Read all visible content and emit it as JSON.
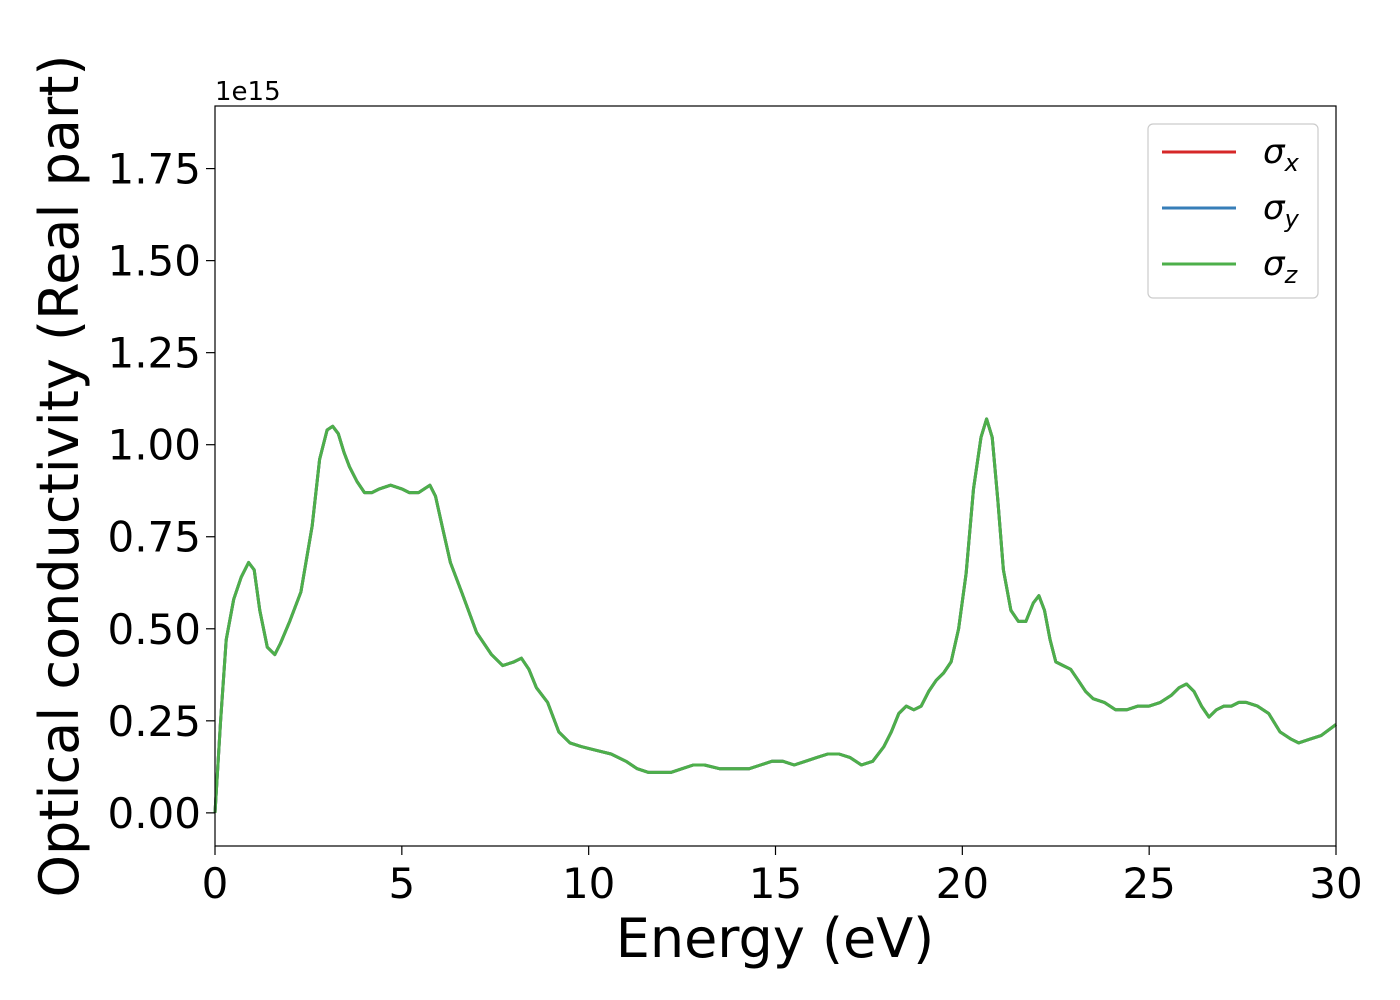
{
  "chart_data": {
    "type": "line",
    "xlabel": "Energy (eV)",
    "ylabel": "Optical conductivity (Real part)",
    "offset_text": "1e15",
    "xlim": [
      0,
      30
    ],
    "ylim": [
      -0.09,
      1.92
    ],
    "xticks": [
      0,
      5,
      10,
      15,
      20,
      25,
      30
    ],
    "yticks": [
      0.0,
      0.25,
      0.5,
      0.75,
      1.0,
      1.25,
      1.5,
      1.75
    ],
    "ytick_labels": [
      "0.00",
      "0.25",
      "0.50",
      "0.75",
      "1.00",
      "1.25",
      "1.50",
      "1.75"
    ],
    "legend_position": "top-right",
    "grid": false,
    "x": [
      0,
      0.15,
      0.3,
      0.5,
      0.7,
      0.9,
      1.05,
      1.2,
      1.4,
      1.6,
      1.75,
      2.0,
      2.3,
      2.6,
      2.8,
      3.0,
      3.15,
      3.3,
      3.45,
      3.6,
      3.8,
      4.0,
      4.2,
      4.4,
      4.7,
      5.0,
      5.2,
      5.45,
      5.6,
      5.75,
      5.9,
      6.1,
      6.3,
      6.6,
      7.0,
      7.4,
      7.7,
      8.0,
      8.2,
      8.4,
      8.6,
      8.9,
      9.2,
      9.5,
      9.8,
      10.2,
      10.6,
      11.0,
      11.3,
      11.6,
      11.9,
      12.2,
      12.5,
      12.8,
      13.1,
      13.5,
      13.9,
      14.3,
      14.6,
      14.9,
      15.2,
      15.5,
      15.8,
      16.1,
      16.4,
      16.7,
      17.0,
      17.3,
      17.6,
      17.9,
      18.1,
      18.3,
      18.5,
      18.7,
      18.9,
      19.1,
      19.3,
      19.5,
      19.7,
      19.9,
      20.1,
      20.3,
      20.5,
      20.65,
      20.8,
      20.95,
      21.1,
      21.3,
      21.5,
      21.7,
      21.9,
      22.05,
      22.2,
      22.35,
      22.5,
      22.7,
      22.9,
      23.1,
      23.3,
      23.5,
      23.8,
      24.1,
      24.4,
      24.7,
      25.0,
      25.3,
      25.6,
      25.8,
      26.0,
      26.2,
      26.4,
      26.6,
      26.8,
      27.0,
      27.2,
      27.4,
      27.6,
      27.9,
      28.2,
      28.5,
      28.8,
      29.0,
      29.3,
      29.6,
      30.0
    ],
    "series": [
      {
        "name": "σ_x",
        "color": "#d62728",
        "values": [
          0.0,
          0.25,
          0.47,
          0.58,
          0.64,
          0.68,
          0.66,
          0.55,
          0.45,
          0.43,
          0.46,
          0.52,
          0.6,
          0.78,
          0.96,
          1.04,
          1.05,
          1.03,
          0.98,
          0.94,
          0.9,
          0.87,
          0.87,
          0.88,
          0.89,
          0.88,
          0.87,
          0.87,
          0.88,
          0.89,
          0.86,
          0.77,
          0.68,
          0.6,
          0.49,
          0.43,
          0.4,
          0.41,
          0.42,
          0.39,
          0.34,
          0.3,
          0.22,
          0.19,
          0.18,
          0.17,
          0.16,
          0.14,
          0.12,
          0.11,
          0.11,
          0.11,
          0.12,
          0.13,
          0.13,
          0.12,
          0.12,
          0.12,
          0.13,
          0.14,
          0.14,
          0.13,
          0.14,
          0.15,
          0.16,
          0.16,
          0.15,
          0.13,
          0.14,
          0.18,
          0.22,
          0.27,
          0.29,
          0.28,
          0.29,
          0.33,
          0.36,
          0.38,
          0.41,
          0.5,
          0.65,
          0.88,
          1.02,
          1.07,
          1.02,
          0.85,
          0.66,
          0.55,
          0.52,
          0.52,
          0.57,
          0.59,
          0.55,
          0.47,
          0.41,
          0.4,
          0.39,
          0.36,
          0.33,
          0.31,
          0.3,
          0.28,
          0.28,
          0.29,
          0.29,
          0.3,
          0.32,
          0.34,
          0.35,
          0.33,
          0.29,
          0.26,
          0.28,
          0.29,
          0.29,
          0.3,
          0.3,
          0.29,
          0.27,
          0.22,
          0.2,
          0.19,
          0.2,
          0.21,
          0.24
        ]
      },
      {
        "name": "σ_y",
        "color": "#377eb8",
        "values": [
          0.0,
          0.25,
          0.47,
          0.58,
          0.64,
          0.68,
          0.66,
          0.55,
          0.45,
          0.43,
          0.46,
          0.52,
          0.6,
          0.78,
          0.96,
          1.04,
          1.05,
          1.03,
          0.98,
          0.94,
          0.9,
          0.87,
          0.87,
          0.88,
          0.89,
          0.88,
          0.87,
          0.87,
          0.88,
          0.89,
          0.86,
          0.77,
          0.68,
          0.6,
          0.49,
          0.43,
          0.4,
          0.41,
          0.42,
          0.39,
          0.34,
          0.3,
          0.22,
          0.19,
          0.18,
          0.17,
          0.16,
          0.14,
          0.12,
          0.11,
          0.11,
          0.11,
          0.12,
          0.13,
          0.13,
          0.12,
          0.12,
          0.12,
          0.13,
          0.14,
          0.14,
          0.13,
          0.14,
          0.15,
          0.16,
          0.16,
          0.15,
          0.13,
          0.14,
          0.18,
          0.22,
          0.27,
          0.29,
          0.28,
          0.29,
          0.33,
          0.36,
          0.38,
          0.41,
          0.5,
          0.65,
          0.88,
          1.02,
          1.07,
          1.02,
          0.85,
          0.66,
          0.55,
          0.52,
          0.52,
          0.57,
          0.59,
          0.55,
          0.47,
          0.41,
          0.4,
          0.39,
          0.36,
          0.33,
          0.31,
          0.3,
          0.28,
          0.28,
          0.29,
          0.29,
          0.3,
          0.32,
          0.34,
          0.35,
          0.33,
          0.29,
          0.26,
          0.28,
          0.29,
          0.29,
          0.3,
          0.3,
          0.29,
          0.27,
          0.22,
          0.2,
          0.19,
          0.2,
          0.21,
          0.24
        ]
      },
      {
        "name": "σ_z",
        "color": "#4daf4a",
        "values": [
          0.0,
          0.25,
          0.47,
          0.58,
          0.64,
          0.68,
          0.66,
          0.55,
          0.45,
          0.43,
          0.46,
          0.52,
          0.6,
          0.78,
          0.96,
          1.04,
          1.05,
          1.03,
          0.98,
          0.94,
          0.9,
          0.87,
          0.87,
          0.88,
          0.89,
          0.88,
          0.87,
          0.87,
          0.88,
          0.89,
          0.86,
          0.77,
          0.68,
          0.6,
          0.49,
          0.43,
          0.4,
          0.41,
          0.42,
          0.39,
          0.34,
          0.3,
          0.22,
          0.19,
          0.18,
          0.17,
          0.16,
          0.14,
          0.12,
          0.11,
          0.11,
          0.11,
          0.12,
          0.13,
          0.13,
          0.12,
          0.12,
          0.12,
          0.13,
          0.14,
          0.14,
          0.13,
          0.14,
          0.15,
          0.16,
          0.16,
          0.15,
          0.13,
          0.14,
          0.18,
          0.22,
          0.27,
          0.29,
          0.28,
          0.29,
          0.33,
          0.36,
          0.38,
          0.41,
          0.5,
          0.65,
          0.88,
          1.02,
          1.07,
          1.02,
          0.85,
          0.66,
          0.55,
          0.52,
          0.52,
          0.57,
          0.59,
          0.55,
          0.47,
          0.41,
          0.4,
          0.39,
          0.36,
          0.33,
          0.31,
          0.3,
          0.28,
          0.28,
          0.29,
          0.29,
          0.3,
          0.32,
          0.34,
          0.35,
          0.33,
          0.29,
          0.26,
          0.28,
          0.29,
          0.29,
          0.3,
          0.3,
          0.29,
          0.27,
          0.22,
          0.2,
          0.19,
          0.2,
          0.21,
          0.24
        ]
      }
    ]
  }
}
